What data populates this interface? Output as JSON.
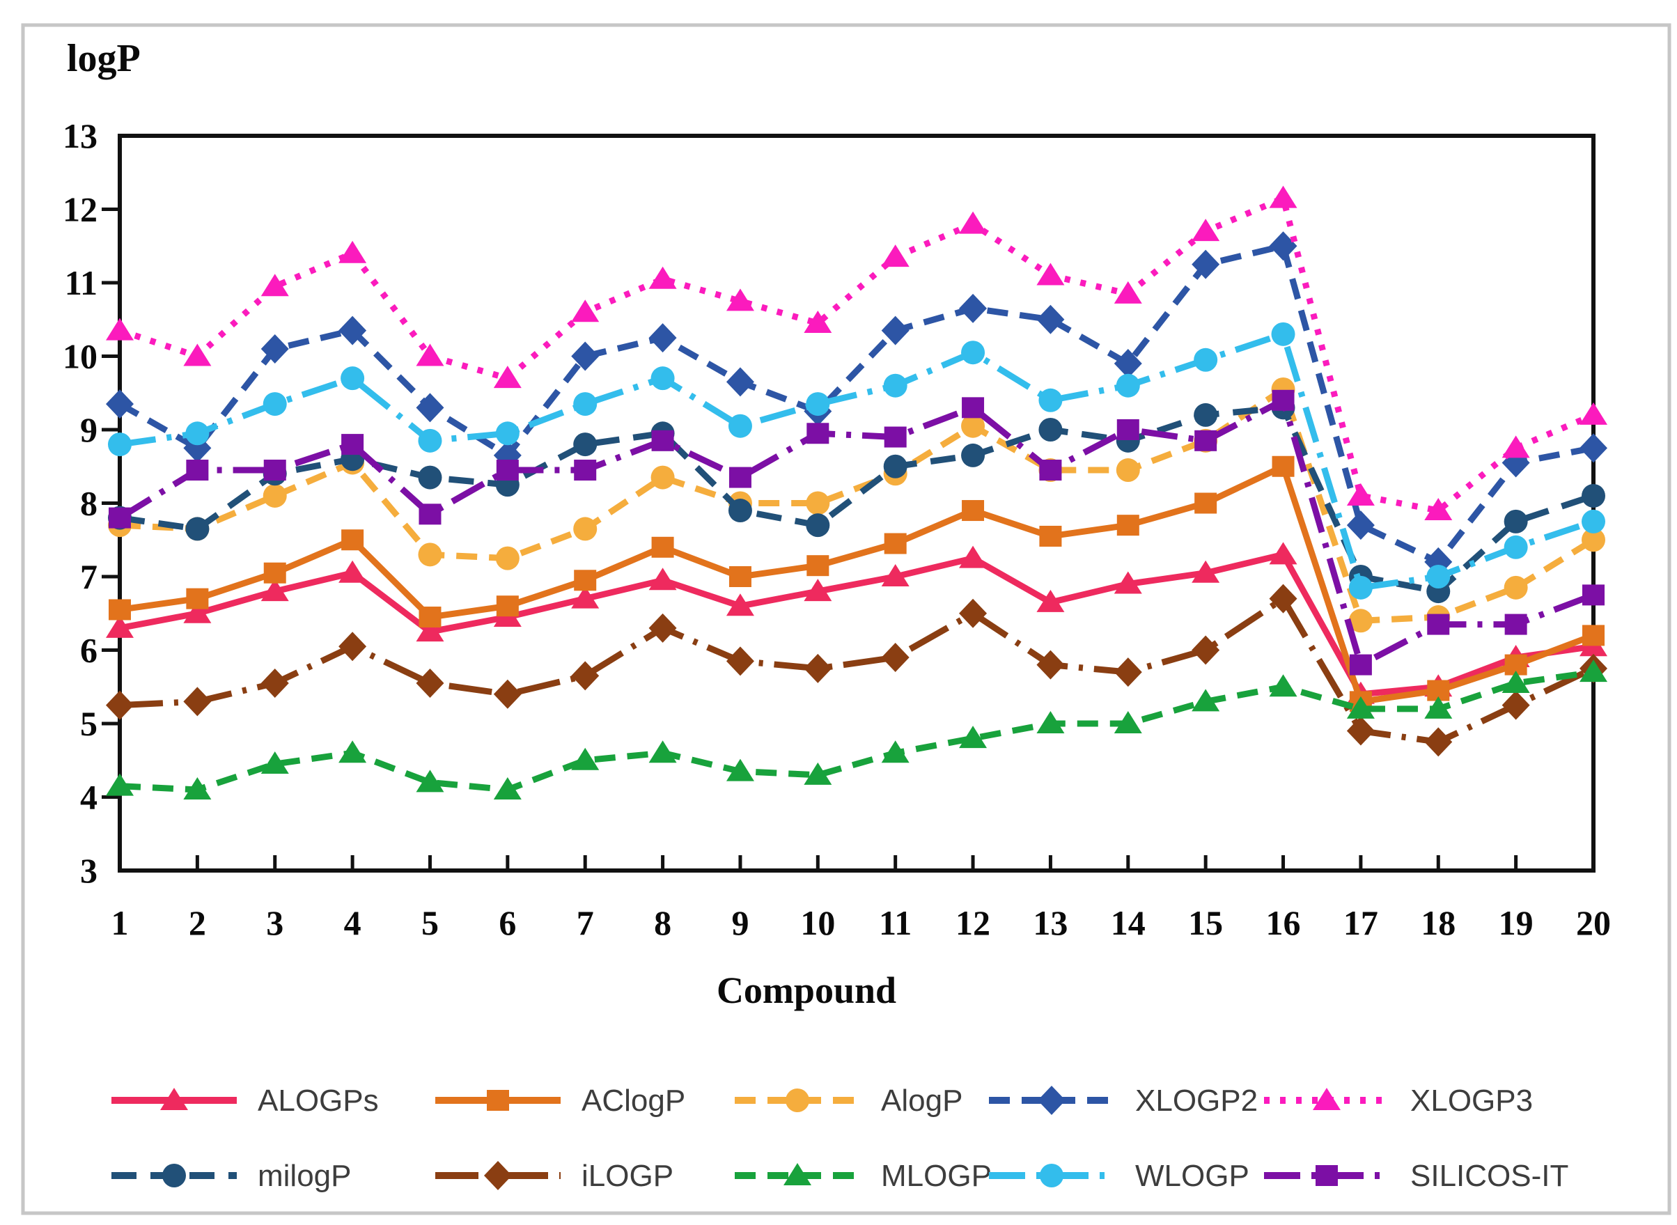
{
  "figure": {
    "y_axis_title": "logP",
    "x_axis_title": "Compound"
  },
  "chart_data": {
    "type": "line",
    "title": "",
    "xlabel": "Compound",
    "ylabel": "logP",
    "ylim": [
      3,
      13
    ],
    "y_ticks": [
      3,
      4,
      5,
      6,
      7,
      8,
      9,
      10,
      11,
      12,
      13
    ],
    "grid": false,
    "legend_position": "bottom",
    "legend_rows": [
      [
        "ALOGPs",
        "AClogP",
        "AlogP",
        "XLOGP2",
        "XLOGP3"
      ],
      [
        "milogP",
        "iLOGP",
        "MLOGP",
        "WLOGP",
        "SILICOS-IT"
      ]
    ],
    "categories": [
      1,
      2,
      3,
      4,
      5,
      6,
      7,
      8,
      9,
      10,
      11,
      12,
      13,
      14,
      15,
      16,
      17,
      18,
      19,
      20
    ],
    "series": [
      {
        "name": "ALOGPs",
        "color": "#ee2a5e",
        "marker": "triangle",
        "dash": "solid",
        "values": [
          6.3,
          6.5,
          6.8,
          7.05,
          6.25,
          6.45,
          6.7,
          6.95,
          6.6,
          6.8,
          7.0,
          7.25,
          6.65,
          6.9,
          7.05,
          7.3,
          5.4,
          5.5,
          5.9,
          6.05
        ]
      },
      {
        "name": "AClogP",
        "color": "#e2731c",
        "marker": "square",
        "dash": "solid",
        "values": [
          6.55,
          6.7,
          7.05,
          7.5,
          6.45,
          6.6,
          6.95,
          7.4,
          7.0,
          7.15,
          7.45,
          7.9,
          7.55,
          7.7,
          8.0,
          8.5,
          5.3,
          5.45,
          5.8,
          6.2
        ]
      },
      {
        "name": "AlogP",
        "color": "#f5ad3d",
        "marker": "circle",
        "dash": "dash",
        "values": [
          7.7,
          7.65,
          8.1,
          8.55,
          7.3,
          7.25,
          7.65,
          8.35,
          8.0,
          8.0,
          8.4,
          9.05,
          8.45,
          8.45,
          8.85,
          9.55,
          6.4,
          6.45,
          6.85,
          7.5
        ]
      },
      {
        "name": "XLOGP2",
        "color": "#2d55a5",
        "marker": "diamond",
        "dash": "dash",
        "values": [
          9.35,
          8.75,
          10.1,
          10.35,
          9.3,
          8.65,
          10.0,
          10.25,
          9.65,
          9.25,
          10.35,
          10.65,
          10.5,
          9.9,
          11.25,
          11.5,
          7.7,
          7.2,
          8.55,
          8.75
        ]
      },
      {
        "name": "XLOGP3",
        "color": "#fb1bbd",
        "marker": "triangle",
        "dash": "dot",
        "values": [
          10.35,
          10.0,
          10.95,
          11.4,
          10.0,
          9.7,
          10.6,
          11.05,
          10.75,
          10.45,
          11.35,
          11.8,
          11.1,
          10.85,
          11.7,
          12.15,
          8.1,
          7.9,
          8.75,
          9.2
        ]
      },
      {
        "name": "milogP",
        "color": "#215078",
        "marker": "circle",
        "dash": "dashlong",
        "values": [
          7.8,
          7.65,
          8.4,
          8.6,
          8.35,
          8.25,
          8.8,
          8.95,
          7.9,
          7.7,
          8.5,
          8.65,
          9.0,
          8.85,
          9.2,
          9.3,
          7.0,
          6.8,
          7.75,
          8.1
        ]
      },
      {
        "name": "iLOGP",
        "color": "#8a3e12",
        "marker": "diamond",
        "dash": "dashdotlong",
        "values": [
          5.25,
          5.3,
          5.55,
          6.05,
          5.55,
          5.4,
          5.65,
          6.3,
          5.85,
          5.75,
          5.9,
          6.5,
          5.8,
          5.7,
          6.0,
          6.7,
          4.9,
          4.75,
          5.25,
          5.75
        ]
      },
      {
        "name": "MLOGP",
        "color": "#18a23c",
        "marker": "triangle",
        "dash": "dash",
        "values": [
          4.15,
          4.1,
          4.45,
          4.6,
          4.2,
          4.1,
          4.5,
          4.6,
          4.35,
          4.3,
          4.6,
          4.8,
          5.0,
          5.0,
          5.3,
          5.5,
          5.2,
          5.2,
          5.55,
          5.7
        ]
      },
      {
        "name": "WLOGP",
        "color": "#33bdec",
        "marker": "circle",
        "dash": "dashdot",
        "values": [
          8.8,
          8.95,
          9.35,
          9.7,
          8.85,
          8.95,
          9.35,
          9.7,
          9.05,
          9.35,
          9.6,
          10.05,
          9.4,
          9.6,
          9.95,
          10.3,
          6.85,
          7.0,
          7.4,
          7.75
        ]
      },
      {
        "name": "SILICOS-IT",
        "color": "#7c0fa5",
        "marker": "square",
        "dash": "dashdot",
        "values": [
          7.8,
          8.45,
          8.45,
          8.8,
          7.85,
          8.45,
          8.45,
          8.85,
          8.35,
          8.95,
          8.9,
          9.3,
          8.45,
          9.0,
          8.85,
          9.4,
          5.8,
          6.35,
          6.35,
          6.75
        ]
      }
    ]
  }
}
